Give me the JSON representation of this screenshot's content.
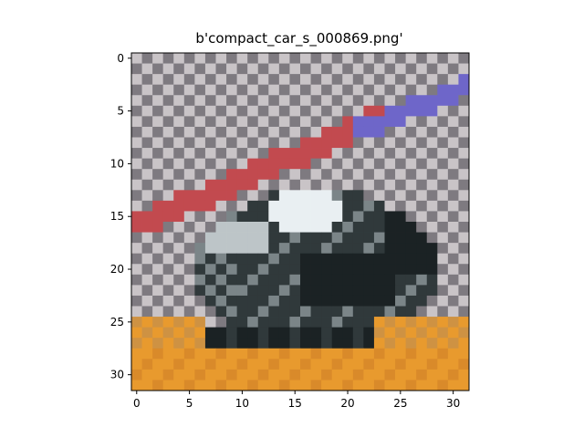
{
  "figure": {
    "title": "b'compact_car_s_000869.png'"
  },
  "image": {
    "subject": "pixelated compact car on checkerboard background",
    "resolution": [
      32,
      32
    ],
    "x_ticks": [
      "0",
      "5",
      "10",
      "15",
      "20",
      "25",
      "30"
    ],
    "y_ticks": [
      "0",
      "5",
      "10",
      "15",
      "20",
      "25",
      "30"
    ],
    "colors": {
      "checker_light": "#c9c4c7",
      "checker_dark": "#7e7a80",
      "red_stripe": "#c24a4f",
      "blue_stripe": "#6e66c9",
      "car_dark": "#1b2224",
      "car_shadow": "#30393b",
      "car_white": "#e9eff2",
      "car_gray": "#7b8588",
      "ground_orange": "#e89a2e",
      "ground_orange_dark": "#d98a2a"
    }
  }
}
